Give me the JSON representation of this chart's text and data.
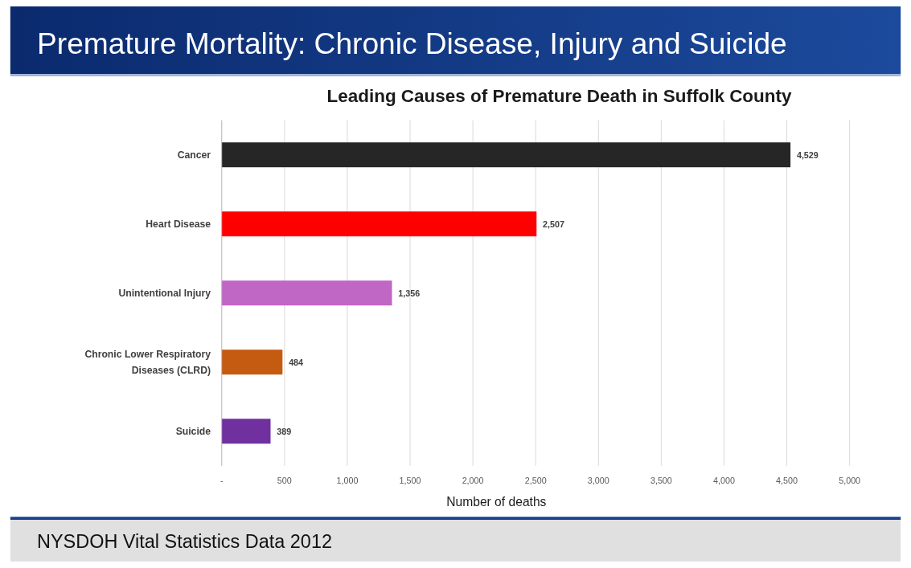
{
  "chart_data": {
    "type": "bar",
    "orientation": "horizontal",
    "title": "Premature Mortality: Chronic Disease, Injury and Suicide",
    "subtitle": "Leading Causes of Premature Death in Suffolk County",
    "xlabel": "Number of deaths",
    "categories": [
      "Cancer",
      "Heart Disease",
      "Unintentional Injury",
      "Chronic Lower Respiratory Diseases (CLRD)",
      "Suicide"
    ],
    "values": [
      4529,
      2507,
      1356,
      484,
      389
    ],
    "colors": [
      "#262626",
      "#ff0000",
      "#c066c4",
      "#c55a11",
      "#7030a0"
    ],
    "value_labels": [
      "4,529",
      "2,507",
      "1,356",
      "484",
      "389"
    ],
    "xlim": [
      0,
      5000
    ],
    "xticks": [
      {
        "value": 0,
        "label": "-"
      },
      500,
      {
        "value": 1000,
        "label": "1,000"
      },
      {
        "value": 1500,
        "label": "1,500"
      },
      {
        "value": 2000,
        "label": "2,000"
      },
      {
        "value": 2500,
        "label": "2,500"
      },
      {
        "value": 3000,
        "label": "3,000"
      },
      {
        "value": 3500,
        "label": "3,500"
      },
      {
        "value": 4000,
        "label": "4,000"
      },
      {
        "value": 4500,
        "label": "4,500"
      },
      {
        "value": 5000,
        "label": "5,000"
      }
    ],
    "grid": "x",
    "annotations": [
      "NYSDOH Vital Statistics Data 2012"
    ]
  }
}
